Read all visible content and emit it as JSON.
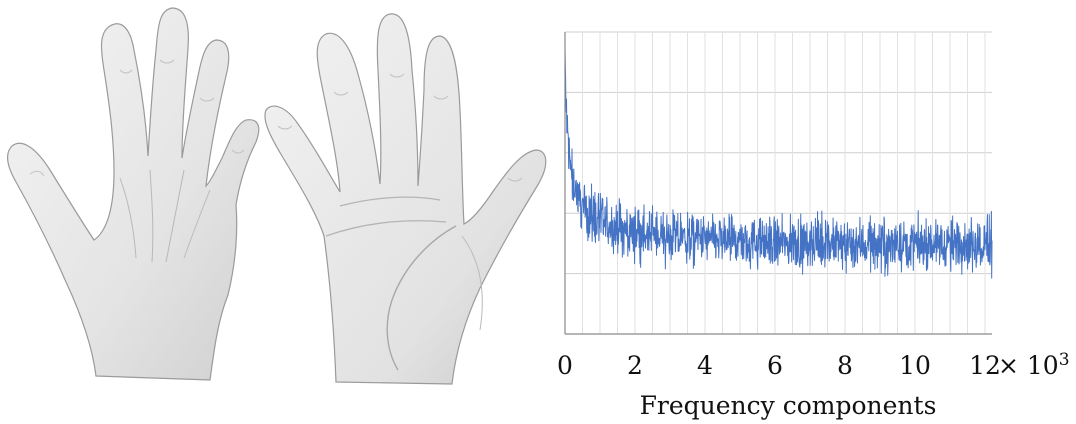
{
  "figure": {
    "panels": [
      {
        "name": "hand-mesh-dorsal",
        "depiction": "3D hand mesh, back side"
      },
      {
        "name": "hand-mesh-palmar",
        "depiction": "3D hand mesh, palm side"
      }
    ]
  },
  "chart_data": {
    "type": "line",
    "title": "",
    "xlabel": "Frequency components",
    "ylabel": "",
    "x_multiplier_label": "× 10",
    "x_multiplier_exponent": "3",
    "x_ticks": [
      0,
      2,
      4,
      6,
      8,
      10,
      12
    ],
    "x_tick_labels": [
      "0",
      "2",
      "4",
      "6",
      "8",
      "10",
      "12"
    ],
    "xlim": [
      0,
      12.2
    ],
    "ylim": [
      0,
      5
    ],
    "y_ticks": [
      0,
      1,
      2,
      3,
      4,
      5
    ],
    "y_tick_labels": [],
    "grid": true,
    "legend": "none",
    "series": [
      {
        "color": "#4472C4",
        "x": [
          0,
          0.02,
          0.05,
          0.1,
          0.15,
          0.2,
          0.3,
          0.4,
          0.5,
          0.7,
          1.0,
          1.5,
          2.0,
          3.0,
          4.0,
          5.0,
          6.0,
          7.0,
          8.0,
          9.0,
          10.0,
          11.0,
          12.0,
          12.2
        ],
        "y": [
          4.7,
          4.0,
          3.5,
          3.1,
          2.8,
          2.62,
          2.42,
          2.25,
          2.12,
          1.97,
          1.85,
          1.75,
          1.68,
          1.6,
          1.56,
          1.53,
          1.5,
          1.5,
          1.49,
          1.49,
          1.49,
          1.5,
          1.5,
          1.55
        ],
        "noise_amplitude": [
          0.15,
          0.2,
          0.22,
          0.22,
          0.2,
          0.2,
          0.2,
          0.2,
          0.2,
          0.2,
          0.2,
          0.2,
          0.2,
          0.2,
          0.2,
          0.2,
          0.2,
          0.2,
          0.2,
          0.2,
          0.2,
          0.2,
          0.2,
          0.4
        ]
      }
    ]
  }
}
